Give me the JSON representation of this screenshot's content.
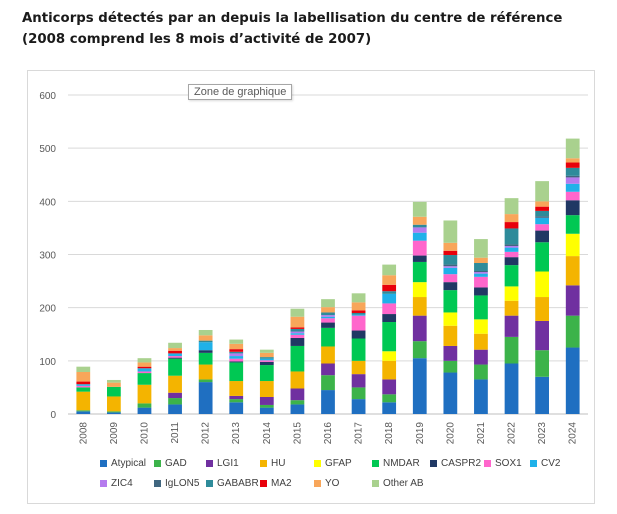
{
  "chart_data": {
    "type": "bar",
    "stacked": true,
    "title": "Anticorps détectés par an depuis la labellisation du centre de référence (2008 comprend les 8 mois d’activité de 2007)",
    "tooltip": "Zone de graphique",
    "categories": [
      "2008",
      "2009",
      "2010",
      "2011",
      "2012",
      "2013",
      "2014",
      "2015",
      "2016",
      "2017",
      "2018",
      "2019",
      "2020",
      "2021",
      "2022",
      "2023",
      "2024"
    ],
    "ylim": [
      0,
      600
    ],
    "yticks": [
      0,
      100,
      200,
      300,
      400,
      500,
      600
    ],
    "grid": true,
    "legend_position": "bottom",
    "series": [
      {
        "name": "Atypical",
        "color": "#1f6fc1",
        "values": [
          5,
          3,
          12,
          18,
          60,
          22,
          12,
          18,
          45,
          28,
          22,
          105,
          78,
          65,
          95,
          70,
          125
        ]
      },
      {
        "name": "GAD",
        "color": "#3cb34a",
        "values": [
          2,
          2,
          8,
          12,
          5,
          6,
          5,
          8,
          28,
          22,
          15,
          32,
          22,
          28,
          50,
          50,
          60
        ]
      },
      {
        "name": "LGI1",
        "color": "#7030a0",
        "values": [
          0,
          0,
          0,
          10,
          0,
          6,
          15,
          22,
          22,
          25,
          28,
          48,
          28,
          28,
          40,
          55,
          57
        ]
      },
      {
        "name": "HU",
        "color": "#f4b400",
        "values": [
          35,
          28,
          35,
          32,
          28,
          28,
          30,
          32,
          32,
          25,
          35,
          35,
          38,
          30,
          28,
          45,
          55
        ]
      },
      {
        "name": "GFAP",
        "color": "#ffff00",
        "values": [
          0,
          0,
          0,
          0,
          0,
          0,
          0,
          0,
          0,
          0,
          18,
          28,
          25,
          27,
          27,
          48,
          42
        ]
      },
      {
        "name": "NMDAR",
        "color": "#00c853",
        "values": [
          8,
          18,
          22,
          32,
          22,
          35,
          30,
          48,
          35,
          42,
          55,
          38,
          42,
          45,
          40,
          55,
          35
        ]
      },
      {
        "name": "CASPR2",
        "color": "#203864",
        "values": [
          0,
          0,
          0,
          2,
          5,
          2,
          6,
          15,
          10,
          15,
          15,
          12,
          15,
          15,
          15,
          22,
          28
        ]
      },
      {
        "name": "SOX1",
        "color": "#ff66cc",
        "values": [
          3,
          0,
          3,
          3,
          0,
          5,
          3,
          6,
          8,
          28,
          20,
          28,
          15,
          20,
          10,
          12,
          16
        ]
      },
      {
        "name": "CV2",
        "color": "#1fb1e9",
        "values": [
          3,
          0,
          6,
          5,
          15,
          5,
          3,
          3,
          3,
          2,
          18,
          15,
          12,
          6,
          8,
          12,
          15
        ]
      },
      {
        "name": "ZIC4",
        "color": "#b57bee",
        "values": [
          0,
          0,
          0,
          0,
          0,
          5,
          0,
          3,
          3,
          0,
          0,
          10,
          3,
          3,
          3,
          0,
          12
        ]
      },
      {
        "name": "IgLON5",
        "color": "#40667f",
        "values": [
          0,
          0,
          0,
          0,
          0,
          0,
          0,
          0,
          0,
          0,
          0,
          0,
          3,
          2,
          3,
          3,
          3
        ]
      },
      {
        "name": "GABABR",
        "color": "#2e8b9a",
        "values": [
          0,
          0,
          0,
          0,
          3,
          3,
          3,
          5,
          5,
          3,
          5,
          5,
          18,
          15,
          30,
          10,
          15
        ]
      },
      {
        "name": "MA2",
        "color": "#e8000b",
        "values": [
          5,
          0,
          3,
          5,
          0,
          5,
          0,
          3,
          0,
          5,
          12,
          0,
          8,
          0,
          12,
          8,
          10
        ]
      },
      {
        "name": "YO",
        "color": "#f8a65a",
        "values": [
          18,
          8,
          8,
          5,
          10,
          10,
          8,
          20,
          10,
          15,
          18,
          15,
          15,
          10,
          15,
          10,
          8
        ]
      },
      {
        "name": "Other AB",
        "color": "#a9d18e",
        "values": [
          10,
          5,
          8,
          10,
          10,
          8,
          6,
          15,
          15,
          17,
          20,
          28,
          42,
          35,
          30,
          38,
          37
        ]
      }
    ]
  }
}
